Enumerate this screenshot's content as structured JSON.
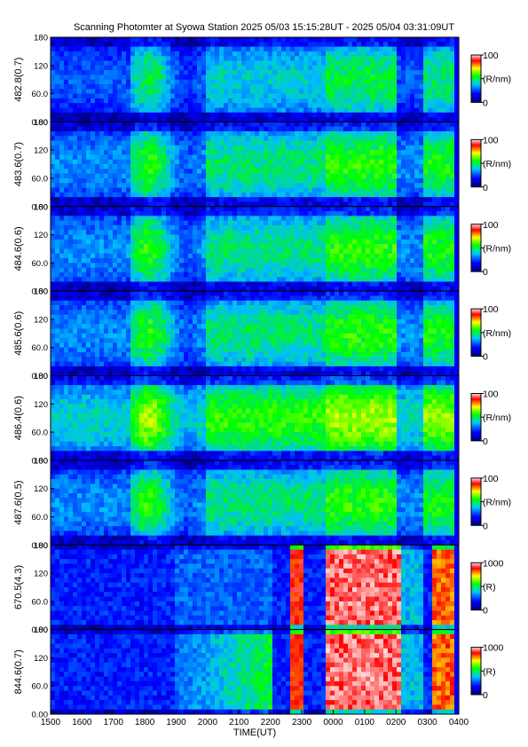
{
  "title": "Scanning Photomter at Syowa Station 2025 05/03 15:15:28UT - 2025 05/04 03:31:09UT",
  "chart_data": {
    "type": "heatmap",
    "title": "Scanning Photomter at Syowa Station 2025 05/03 15:15:28UT - 2025 05/04 03:31:09UT",
    "xlabel": "TIME(UT)",
    "x_ticks": [
      "1500",
      "1600",
      "1700",
      "1800",
      "1900",
      "2000",
      "2100",
      "2200",
      "2300",
      "0000",
      "0100",
      "0200",
      "0300",
      "0400"
    ],
    "y_ticks": [
      "0.00",
      "60.0",
      "120",
      "180"
    ],
    "ylim": [
      0,
      180
    ],
    "panels": [
      {
        "ylabel": "482.8(0.7)",
        "unit": "(R/nm)",
        "cbar_max": "100",
        "cbar_min": "0",
        "vmax": 100
      },
      {
        "ylabel": "483.6(0.7)",
        "unit": "(R/nm)",
        "cbar_max": "100",
        "cbar_min": "0",
        "vmax": 100
      },
      {
        "ylabel": "484.6(0.6)",
        "unit": "(R/nm)",
        "cbar_max": "100",
        "cbar_min": "0",
        "vmax": 100
      },
      {
        "ylabel": "485.6(0.6)",
        "unit": "(R/nm)",
        "cbar_max": "100",
        "cbar_min": "0",
        "vmax": 100
      },
      {
        "ylabel": "486.4(0.6)",
        "unit": "(R/nm)",
        "cbar_max": "100",
        "cbar_min": "0",
        "vmax": 100
      },
      {
        "ylabel": "487.6(0.5)",
        "unit": "(R/nm)",
        "cbar_max": "100",
        "cbar_min": "0",
        "vmax": 100
      },
      {
        "ylabel": "670.5(4.3)",
        "unit": "(R)",
        "cbar_max": "1000",
        "cbar_min": "0",
        "vmax": 1000
      },
      {
        "ylabel": "844.6(0.7)",
        "unit": "(R)",
        "cbar_max": "1000",
        "cbar_min": "0",
        "vmax": 1000
      }
    ],
    "colormap": [
      "#000080",
      "#0000ff",
      "#00c8ff",
      "#00ff00",
      "#ffff00",
      "#ff0000",
      "#ffffff"
    ]
  }
}
